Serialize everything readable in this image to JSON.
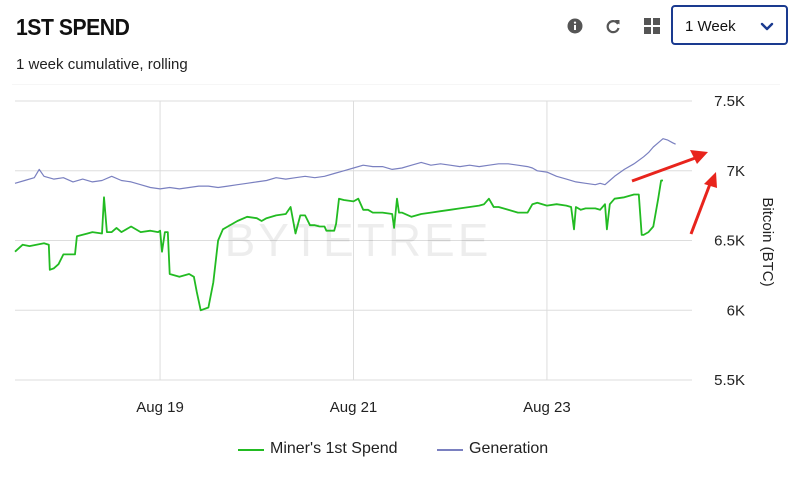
{
  "header": {
    "title": "1ST SPEND",
    "subtitle": "1 week cumulative, rolling",
    "select_value": "1 Week",
    "icons": [
      "info-icon",
      "refresh-icon",
      "grid-icon",
      "chevron-down-icon"
    ]
  },
  "watermark": "BYTETREE",
  "colors": {
    "miner": "#22bb22",
    "generation": "#7a80c0",
    "arrow": "#e8241c",
    "select_border": "#1a3a8f"
  },
  "chart_data": {
    "type": "line",
    "ylabel": "Bitcoin (BTC)",
    "ylim": [
      5500,
      7500
    ],
    "yticks": [
      {
        "value": 7500,
        "label": "7.5K"
      },
      {
        "value": 7000,
        "label": "7K"
      },
      {
        "value": 6500,
        "label": "6.5K"
      },
      {
        "value": 6000,
        "label": "6K"
      },
      {
        "value": 5500,
        "label": "5.5K"
      }
    ],
    "xlim": [
      0,
      7
    ],
    "xticks": [
      {
        "value": 1.5,
        "label": "Aug 19"
      },
      {
        "value": 3.5,
        "label": "Aug 21"
      },
      {
        "value": 5.5,
        "label": "Aug 23"
      }
    ],
    "series": [
      {
        "name": "Miner's 1st Spend",
        "color": "#22bb22",
        "points": [
          [
            0.0,
            6420
          ],
          [
            0.08,
            6470
          ],
          [
            0.15,
            6460
          ],
          [
            0.3,
            6480
          ],
          [
            0.35,
            6470
          ],
          [
            0.36,
            6290
          ],
          [
            0.4,
            6300
          ],
          [
            0.45,
            6330
          ],
          [
            0.5,
            6400
          ],
          [
            0.62,
            6400
          ],
          [
            0.64,
            6530
          ],
          [
            0.75,
            6550
          ],
          [
            0.8,
            6560
          ],
          [
            0.9,
            6550
          ],
          [
            0.92,
            6810
          ],
          [
            0.95,
            6560
          ],
          [
            1.0,
            6560
          ],
          [
            1.05,
            6590
          ],
          [
            1.1,
            6560
          ],
          [
            1.2,
            6600
          ],
          [
            1.3,
            6560
          ],
          [
            1.4,
            6570
          ],
          [
            1.48,
            6560
          ],
          [
            1.5,
            6570
          ],
          [
            1.52,
            6420
          ],
          [
            1.55,
            6560
          ],
          [
            1.58,
            6560
          ],
          [
            1.6,
            6260
          ],
          [
            1.7,
            6240
          ],
          [
            1.8,
            6260
          ],
          [
            1.85,
            6240
          ],
          [
            1.88,
            6130
          ],
          [
            1.92,
            6000
          ],
          [
            2.0,
            6020
          ],
          [
            2.05,
            6200
          ],
          [
            2.1,
            6500
          ],
          [
            2.15,
            6580
          ],
          [
            2.2,
            6600
          ],
          [
            2.3,
            6640
          ],
          [
            2.4,
            6670
          ],
          [
            2.5,
            6660
          ],
          [
            2.55,
            6640
          ],
          [
            2.6,
            6660
          ],
          [
            2.7,
            6680
          ],
          [
            2.8,
            6690
          ],
          [
            2.85,
            6740
          ],
          [
            2.9,
            6550
          ],
          [
            2.95,
            6680
          ],
          [
            3.0,
            6680
          ],
          [
            3.05,
            6610
          ],
          [
            3.1,
            6610
          ],
          [
            3.15,
            6600
          ],
          [
            3.2,
            6600
          ],
          [
            3.22,
            6570
          ],
          [
            3.3,
            6570
          ],
          [
            3.32,
            6620
          ],
          [
            3.35,
            6800
          ],
          [
            3.4,
            6790
          ],
          [
            3.5,
            6780
          ],
          [
            3.55,
            6800
          ],
          [
            3.6,
            6720
          ],
          [
            3.65,
            6720
          ],
          [
            3.7,
            6700
          ],
          [
            3.8,
            6700
          ],
          [
            3.9,
            6690
          ],
          [
            3.92,
            6590
          ],
          [
            3.95,
            6800
          ],
          [
            3.97,
            6700
          ],
          [
            4.0,
            6700
          ],
          [
            4.1,
            6670
          ],
          [
            4.2,
            6690
          ],
          [
            4.3,
            6700
          ],
          [
            4.4,
            6710
          ],
          [
            4.5,
            6720
          ],
          [
            4.6,
            6730
          ],
          [
            4.7,
            6740
          ],
          [
            4.8,
            6750
          ],
          [
            4.85,
            6760
          ],
          [
            4.9,
            6800
          ],
          [
            4.95,
            6740
          ],
          [
            5.0,
            6740
          ],
          [
            5.1,
            6720
          ],
          [
            5.2,
            6700
          ],
          [
            5.3,
            6700
          ],
          [
            5.35,
            6760
          ],
          [
            5.4,
            6770
          ],
          [
            5.5,
            6750
          ],
          [
            5.6,
            6760
          ],
          [
            5.7,
            6750
          ],
          [
            5.75,
            6740
          ],
          [
            5.78,
            6580
          ],
          [
            5.8,
            6740
          ],
          [
            5.85,
            6720
          ],
          [
            5.9,
            6730
          ],
          [
            6.0,
            6730
          ],
          [
            6.05,
            6720
          ],
          [
            6.1,
            6760
          ],
          [
            6.12,
            6580
          ],
          [
            6.15,
            6760
          ],
          [
            6.2,
            6800
          ],
          [
            6.3,
            6810
          ],
          [
            6.4,
            6830
          ],
          [
            6.45,
            6830
          ],
          [
            6.48,
            6540
          ],
          [
            6.5,
            6540
          ],
          [
            6.55,
            6560
          ],
          [
            6.6,
            6600
          ],
          [
            6.65,
            6800
          ],
          [
            6.68,
            6930
          ],
          [
            6.7,
            6930
          ]
        ]
      },
      {
        "name": "Generation",
        "color": "#7a80c0",
        "points": [
          [
            0.0,
            6910
          ],
          [
            0.1,
            6930
          ],
          [
            0.2,
            6950
          ],
          [
            0.25,
            7010
          ],
          [
            0.3,
            6960
          ],
          [
            0.4,
            6940
          ],
          [
            0.5,
            6950
          ],
          [
            0.6,
            6920
          ],
          [
            0.7,
            6940
          ],
          [
            0.8,
            6920
          ],
          [
            0.9,
            6930
          ],
          [
            1.0,
            6960
          ],
          [
            1.1,
            6930
          ],
          [
            1.2,
            6920
          ],
          [
            1.3,
            6900
          ],
          [
            1.4,
            6880
          ],
          [
            1.5,
            6870
          ],
          [
            1.6,
            6880
          ],
          [
            1.7,
            6870
          ],
          [
            1.8,
            6880
          ],
          [
            1.9,
            6890
          ],
          [
            2.0,
            6890
          ],
          [
            2.1,
            6880
          ],
          [
            2.2,
            6890
          ],
          [
            2.3,
            6900
          ],
          [
            2.4,
            6910
          ],
          [
            2.5,
            6920
          ],
          [
            2.6,
            6930
          ],
          [
            2.7,
            6950
          ],
          [
            2.8,
            6940
          ],
          [
            2.9,
            6950
          ],
          [
            3.0,
            6960
          ],
          [
            3.1,
            6950
          ],
          [
            3.2,
            6960
          ],
          [
            3.3,
            6980
          ],
          [
            3.4,
            7000
          ],
          [
            3.5,
            7020
          ],
          [
            3.6,
            7040
          ],
          [
            3.7,
            7030
          ],
          [
            3.8,
            7030
          ],
          [
            3.9,
            7010
          ],
          [
            4.0,
            7020
          ],
          [
            4.1,
            7040
          ],
          [
            4.2,
            7060
          ],
          [
            4.3,
            7040
          ],
          [
            4.4,
            7050
          ],
          [
            4.5,
            7040
          ],
          [
            4.6,
            7030
          ],
          [
            4.7,
            7040
          ],
          [
            4.8,
            7030
          ],
          [
            4.9,
            7040
          ],
          [
            5.0,
            7050
          ],
          [
            5.1,
            7050
          ],
          [
            5.2,
            7040
          ],
          [
            5.3,
            7030
          ],
          [
            5.35,
            7020
          ],
          [
            5.4,
            7000
          ],
          [
            5.5,
            6990
          ],
          [
            5.6,
            6960
          ],
          [
            5.7,
            6940
          ],
          [
            5.8,
            6920
          ],
          [
            5.9,
            6910
          ],
          [
            6.0,
            6900
          ],
          [
            6.05,
            6910
          ],
          [
            6.1,
            6900
          ],
          [
            6.15,
            6930
          ],
          [
            6.2,
            6960
          ],
          [
            6.3,
            7010
          ],
          [
            6.4,
            7050
          ],
          [
            6.5,
            7100
          ],
          [
            6.55,
            7130
          ],
          [
            6.6,
            7170
          ],
          [
            6.65,
            7200
          ],
          [
            6.7,
            7230
          ],
          [
            6.75,
            7220
          ],
          [
            6.8,
            7200
          ],
          [
            6.83,
            7190
          ]
        ]
      }
    ]
  }
}
